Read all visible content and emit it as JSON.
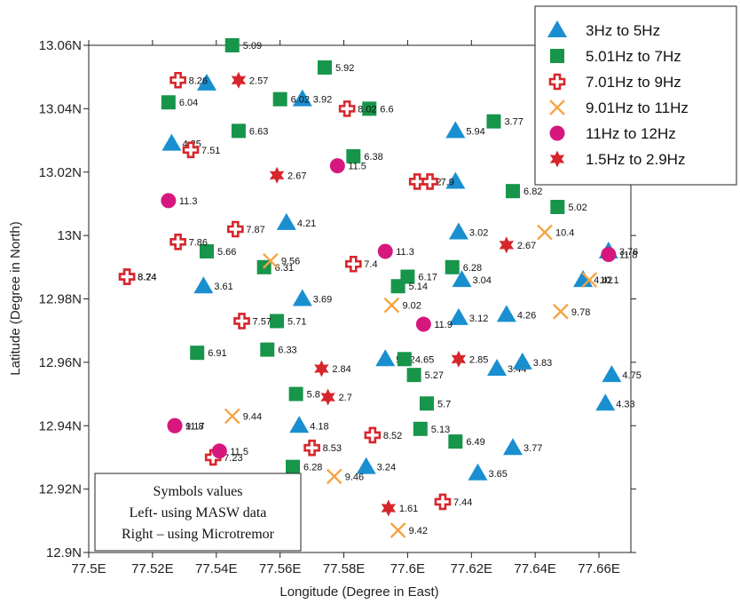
{
  "chart_data": {
    "type": "scatter",
    "xlabel": "Longitude (Degree in East)",
    "ylabel": "Latitude (Degree in North)",
    "xlim": [
      77.5,
      77.67
    ],
    "ylim": [
      12.9,
      13.06
    ],
    "x_ticks": [
      77.5,
      77.52,
      77.54,
      77.56,
      77.58,
      77.6,
      77.62,
      77.64,
      77.66
    ],
    "x_tick_labels": [
      "77.5E",
      "77.52E",
      "77.54E",
      "77.56E",
      "77.58E",
      "77.6E",
      "77.62E",
      "77.64E",
      "77.66E"
    ],
    "y_ticks": [
      12.9,
      12.92,
      12.94,
      12.96,
      12.98,
      13.0,
      13.02,
      13.04,
      13.06
    ],
    "y_tick_labels": [
      "12.9N",
      "12.92N",
      "12.94N",
      "12.96N",
      "12.98N",
      "13N",
      "13.02N",
      "13.04N",
      "13.06N"
    ],
    "legend": {
      "placement": "top-right",
      "entries": [
        {
          "label": "3Hz  to  5Hz",
          "marker": "triangle",
          "color": "#1a8fd0"
        },
        {
          "label": "5.01Hz  to  7Hz",
          "marker": "square",
          "color": "#17954a"
        },
        {
          "label": "7.01Hz  to  9Hz",
          "marker": "cross",
          "color": "#d7262b"
        },
        {
          "label": "9.01Hz  to  11Hz",
          "marker": "x",
          "color": "#f5a443"
        },
        {
          "label": "11Hz  to  12Hz",
          "marker": "circle",
          "color": "#d6187e"
        },
        {
          "label": "1.5Hz  to  2.9Hz",
          "marker": "star",
          "color": "#d7262b"
        }
      ]
    },
    "note_lines": [
      "Symbols values",
      "Left- using MASW data",
      "Right – using Microtremor"
    ],
    "series": [
      {
        "name": "3Hz  to  5Hz",
        "marker": "triangle",
        "color": "#1a8fd0",
        "points": [
          {
            "x": 77.537,
            "y": 13.048,
            "label": ""
          },
          {
            "x": 77.567,
            "y": 13.043,
            "label": "3.92"
          },
          {
            "x": 77.526,
            "y": 13.029,
            "label": "4.25"
          },
          {
            "x": 77.615,
            "y": 13.033,
            "label": "5.94"
          },
          {
            "x": 77.615,
            "y": 13.017,
            "label": ""
          },
          {
            "x": 77.562,
            "y": 13.004,
            "label": "4.21"
          },
          {
            "x": 77.616,
            "y": 13.001,
            "label": "3.02"
          },
          {
            "x": 77.536,
            "y": 12.984,
            "label": "3.61"
          },
          {
            "x": 77.567,
            "y": 12.98,
            "label": "3.69"
          },
          {
            "x": 77.617,
            "y": 12.986,
            "label": "3.04"
          },
          {
            "x": 77.616,
            "y": 12.974,
            "label": "3.12"
          },
          {
            "x": 77.631,
            "y": 12.975,
            "label": "4.26"
          },
          {
            "x": 77.663,
            "y": 12.995,
            "label": "3.76"
          },
          {
            "x": 77.655,
            "y": 12.986,
            "label": "4.42"
          },
          {
            "x": 77.593,
            "y": 12.961,
            "label": "5.12"
          },
          {
            "x": 77.628,
            "y": 12.958,
            "label": "3.44"
          },
          {
            "x": 77.636,
            "y": 12.96,
            "label": "3.83"
          },
          {
            "x": 77.664,
            "y": 12.956,
            "label": "4.75"
          },
          {
            "x": 77.662,
            "y": 12.947,
            "label": "4.33"
          },
          {
            "x": 77.566,
            "y": 12.94,
            "label": "4.18"
          },
          {
            "x": 77.633,
            "y": 12.933,
            "label": "3.77"
          },
          {
            "x": 77.587,
            "y": 12.927,
            "label": "3.24"
          },
          {
            "x": 77.622,
            "y": 12.925,
            "label": "3.65"
          }
        ]
      },
      {
        "name": "5.01Hz  to  7Hz",
        "marker": "square",
        "color": "#17954a",
        "points": [
          {
            "x": 77.545,
            "y": 13.06,
            "label": "5.09"
          },
          {
            "x": 77.574,
            "y": 13.053,
            "label": "5.92"
          },
          {
            "x": 77.525,
            "y": 13.042,
            "label": "6.04"
          },
          {
            "x": 77.56,
            "y": 13.043,
            "label": "6.02"
          },
          {
            "x": 77.588,
            "y": 13.04,
            "label": "6.6"
          },
          {
            "x": 77.627,
            "y": 13.036,
            "label": "3.77"
          },
          {
            "x": 77.547,
            "y": 13.033,
            "label": "6.63"
          },
          {
            "x": 77.583,
            "y": 13.025,
            "label": "6.38"
          },
          {
            "x": 77.633,
            "y": 13.014,
            "label": "6.82"
          },
          {
            "x": 77.647,
            "y": 13.009,
            "label": "5.02"
          },
          {
            "x": 77.537,
            "y": 12.995,
            "label": "5.66"
          },
          {
            "x": 77.555,
            "y": 12.99,
            "label": "6.31"
          },
          {
            "x": 77.614,
            "y": 12.99,
            "label": "6.28"
          },
          {
            "x": 77.6,
            "y": 12.987,
            "label": "6.17"
          },
          {
            "x": 77.597,
            "y": 12.984,
            "label": "5.14"
          },
          {
            "x": 77.559,
            "y": 12.973,
            "label": "5.71"
          },
          {
            "x": 77.534,
            "y": 12.963,
            "label": "6.91"
          },
          {
            "x": 77.556,
            "y": 12.964,
            "label": "6.33"
          },
          {
            "x": 77.599,
            "y": 12.961,
            "label": "4.65"
          },
          {
            "x": 77.602,
            "y": 12.956,
            "label": "5.27"
          },
          {
            "x": 77.565,
            "y": 12.95,
            "label": "5.8"
          },
          {
            "x": 77.606,
            "y": 12.947,
            "label": "5.7"
          },
          {
            "x": 77.604,
            "y": 12.939,
            "label": "5.13"
          },
          {
            "x": 77.615,
            "y": 12.935,
            "label": "6.49"
          },
          {
            "x": 77.564,
            "y": 12.927,
            "label": "6.28"
          }
        ]
      },
      {
        "name": "7.01Hz  to  9Hz",
        "marker": "cross",
        "color": "#d7262b",
        "points": [
          {
            "x": 77.528,
            "y": 13.049,
            "label": "8.26"
          },
          {
            "x": 77.532,
            "y": 13.027,
            "label": "7.51"
          },
          {
            "x": 77.581,
            "y": 13.04,
            "label": "8.02"
          },
          {
            "x": 77.603,
            "y": 13.017,
            "label": "8.2"
          },
          {
            "x": 77.607,
            "y": 13.017,
            "label": "7.9"
          },
          {
            "x": 77.546,
            "y": 13.002,
            "label": "7.87"
          },
          {
            "x": 77.528,
            "y": 12.998,
            "label": "7.86"
          },
          {
            "x": 77.583,
            "y": 12.991,
            "label": "7.4"
          },
          {
            "x": 77.512,
            "y": 12.987,
            "label": "8.24"
          },
          {
            "x": 77.512,
            "y": 12.987,
            "label": "8.74"
          },
          {
            "x": 77.548,
            "y": 12.973,
            "label": "7.57"
          },
          {
            "x": 77.589,
            "y": 12.937,
            "label": "8.52"
          },
          {
            "x": 77.57,
            "y": 12.933,
            "label": "8.53"
          },
          {
            "x": 77.539,
            "y": 12.93,
            "label": "7.23"
          },
          {
            "x": 77.611,
            "y": 12.916,
            "label": "7.44"
          }
        ]
      },
      {
        "name": "9.01Hz  to  11Hz",
        "marker": "x",
        "color": "#f5a443",
        "points": [
          {
            "x": 77.643,
            "y": 13.001,
            "label": "10.4"
          },
          {
            "x": 77.557,
            "y": 12.992,
            "label": "9.56"
          },
          {
            "x": 77.657,
            "y": 12.986,
            "label": "10.1"
          },
          {
            "x": 77.595,
            "y": 12.978,
            "label": "9.02"
          },
          {
            "x": 77.648,
            "y": 12.976,
            "label": "9.78"
          },
          {
            "x": 77.545,
            "y": 12.943,
            "label": "9.44"
          },
          {
            "x": 77.577,
            "y": 12.924,
            "label": "9.46"
          },
          {
            "x": 77.597,
            "y": 12.907,
            "label": "9.42"
          }
        ]
      },
      {
        "name": "11Hz  to  12Hz",
        "marker": "circle",
        "color": "#d6187e",
        "points": [
          {
            "x": 77.578,
            "y": 13.022,
            "label": "11.5"
          },
          {
            "x": 77.525,
            "y": 13.011,
            "label": "11.3"
          },
          {
            "x": 77.593,
            "y": 12.995,
            "label": "11.3"
          },
          {
            "x": 77.663,
            "y": 12.994,
            "label": "11.8"
          },
          {
            "x": 77.605,
            "y": 12.972,
            "label": "11.9"
          },
          {
            "x": 77.527,
            "y": 12.94,
            "label": "11.8"
          },
          {
            "x": 77.527,
            "y": 12.94,
            "label": "9.17"
          },
          {
            "x": 77.541,
            "y": 12.932,
            "label": "11.5"
          }
        ]
      },
      {
        "name": "1.5Hz  to  2.9Hz",
        "marker": "star",
        "color": "#d7262b",
        "points": [
          {
            "x": 77.547,
            "y": 13.049,
            "label": "2.57"
          },
          {
            "x": 77.559,
            "y": 13.019,
            "label": "2.67"
          },
          {
            "x": 77.631,
            "y": 12.997,
            "label": "2.67"
          },
          {
            "x": 77.616,
            "y": 12.961,
            "label": "2.85"
          },
          {
            "x": 77.573,
            "y": 12.958,
            "label": "2.84"
          },
          {
            "x": 77.575,
            "y": 12.949,
            "label": "2.7"
          },
          {
            "x": 77.594,
            "y": 12.914,
            "label": "1.61"
          }
        ]
      }
    ]
  }
}
